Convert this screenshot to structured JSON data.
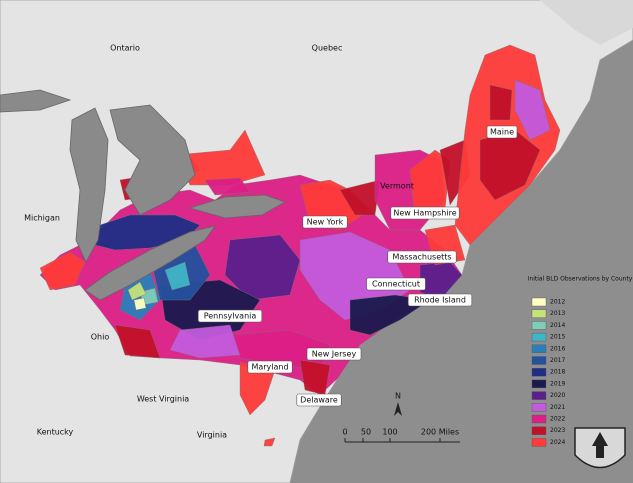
{
  "map": {
    "places": [
      "Ontario",
      "Quebec",
      "Michigan",
      "New York",
      "Vermont",
      "New Hampshire",
      "Maine",
      "Massachusetts",
      "Connecticut",
      "Rhode Island",
      "Pennsylvania",
      "Ohio",
      "New Jersey",
      "Maryland",
      "Delaware",
      "West Virginia",
      "Kentucky",
      "Virginia"
    ],
    "north": "N",
    "scale": [
      "0",
      "50",
      "100",
      "200 Miles"
    ],
    "legend": {
      "title": "Initial BLD Observations by County",
      "items": [
        {
          "label": "2012",
          "color": "#ffffc4"
        },
        {
          "label": "2013",
          "color": "#c4e37a"
        },
        {
          "label": "2014",
          "color": "#7fcdb8"
        },
        {
          "label": "2015",
          "color": "#3fb5c8"
        },
        {
          "label": "2016",
          "color": "#2a7fba"
        },
        {
          "label": "2017",
          "color": "#24519e"
        },
        {
          "label": "2018",
          "color": "#1f2f86"
        },
        {
          "label": "2019",
          "color": "#1b1a4f"
        },
        {
          "label": "2020",
          "color": "#5a1f8c"
        },
        {
          "label": "2021",
          "color": "#c35bdd"
        },
        {
          "label": "2022",
          "color": "#dc1e86"
        },
        {
          "label": "2023",
          "color": "#c3102a"
        },
        {
          "label": "2024",
          "color": "#ff3a3a"
        }
      ]
    }
  }
}
